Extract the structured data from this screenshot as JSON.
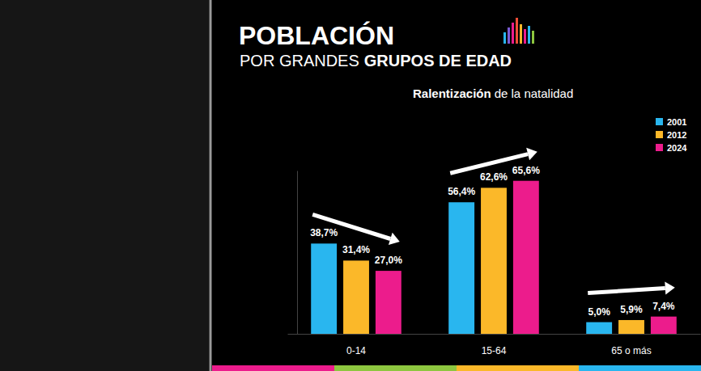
{
  "chart_data": {
    "type": "bar",
    "title": "POBLACIÓN",
    "subtitle": [
      "POR GRANDES",
      "GRUPOS DE EDAD"
    ],
    "annotation": [
      "Ralentización",
      "de la natalidad"
    ],
    "categories": [
      "0-14",
      "15-64",
      "65 o más"
    ],
    "series": [
      {
        "name": "2001",
        "color": "#29b6ef",
        "values": [
          38.7,
          56.4,
          5.0
        ],
        "value_labels": [
          "38,7%",
          "56,4%",
          "5,0%"
        ]
      },
      {
        "name": "2012",
        "color": "#fbb829",
        "values": [
          31.4,
          62.6,
          5.9
        ],
        "value_labels": [
          "31,4%",
          "62,6%",
          "5,9%"
        ]
      },
      {
        "name": "2024",
        "color": "#ec1c8c",
        "values": [
          27.0,
          65.6,
          7.4
        ],
        "value_labels": [
          "27,0%",
          "65,6%",
          "7,4%"
        ]
      }
    ],
    "ylim": [
      0,
      70
    ],
    "data_labels": true,
    "legend": "upper right",
    "tick_labels": "x",
    "grid": false
  }
}
